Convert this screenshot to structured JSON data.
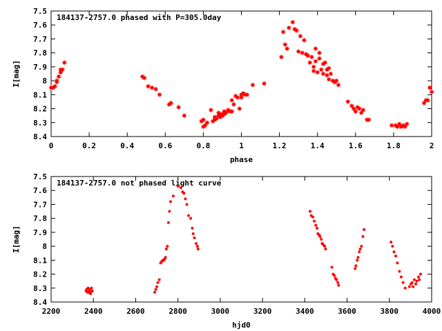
{
  "chart_data": [
    {
      "type": "scatter",
      "title": "184137-2757.0 phased with P=305.0day",
      "xlabel": "phase",
      "ylabel": "I[mag]",
      "xlim": [
        0,
        2
      ],
      "ylim": [
        7.5,
        8.4
      ],
      "y_inverted": true,
      "x_ticks": [
        "0",
        "0.2",
        "0.4",
        "0.6",
        "0.8",
        "1",
        "1.2",
        "1.4",
        "1.6",
        "1.8",
        "2"
      ],
      "y_ticks": [
        "7.5",
        "7.6",
        "7.7",
        "7.8",
        "7.9",
        "8",
        "8.1",
        "8.2",
        "8.3",
        "8.4"
      ],
      "color": "#ff0000",
      "marker": "star",
      "grid": false,
      "series": [
        {
          "x": [
            0.0,
            0.01,
            0.02,
            0.03,
            0.03,
            0.04,
            0.05,
            0.05,
            0.06,
            0.07,
            0.48,
            0.49,
            0.51,
            0.53,
            0.55,
            0.57,
            0.62,
            0.63,
            0.67,
            0.7,
            0.79,
            0.8,
            0.8,
            0.81,
            0.82,
            0.84,
            0.85,
            0.86,
            0.86,
            0.87,
            0.88,
            0.88,
            0.89,
            0.89,
            0.9,
            0.9,
            0.91,
            0.91,
            0.92,
            0.93,
            0.94,
            0.95,
            0.95,
            0.96,
            0.97,
            0.98,
            0.99,
            1.0,
            1.0,
            1.01,
            1.02,
            1.03,
            1.06,
            1.12,
            1.21,
            1.22,
            1.23,
            1.24,
            1.25,
            1.27,
            1.28,
            1.29,
            1.3,
            1.31,
            1.32,
            1.33,
            1.34,
            1.35,
            1.36,
            1.37,
            1.38,
            1.38,
            1.39,
            1.39,
            1.4,
            1.41,
            1.41,
            1.42,
            1.43,
            1.43,
            1.44,
            1.45,
            1.45,
            1.46,
            1.46,
            1.47,
            1.48,
            1.49,
            1.5,
            1.51,
            1.56,
            1.58,
            1.59,
            1.6,
            1.61,
            1.62,
            1.63,
            1.64,
            1.66,
            1.67,
            1.79,
            1.81,
            1.82,
            1.83,
            1.84,
            1.85,
            1.86,
            1.87,
            1.96,
            1.97,
            1.98,
            1.99,
            2.0
          ],
          "y": [
            8.05,
            8.05,
            8.04,
            8.01,
            8.0,
            7.97,
            7.94,
            7.92,
            7.92,
            7.87,
            7.97,
            7.98,
            8.04,
            8.05,
            8.06,
            8.1,
            8.17,
            8.16,
            8.19,
            8.25,
            8.29,
            8.28,
            8.33,
            8.32,
            8.3,
            8.21,
            8.29,
            8.28,
            8.26,
            8.27,
            8.23,
            8.25,
            8.24,
            8.26,
            8.24,
            8.25,
            8.22,
            8.24,
            8.23,
            8.21,
            8.22,
            8.22,
            8.14,
            8.17,
            8.11,
            8.12,
            8.2,
            8.12,
            8.1,
            8.09,
            8.1,
            8.1,
            8.03,
            8.02,
            7.83,
            7.65,
            7.74,
            7.77,
            7.62,
            7.58,
            7.63,
            7.64,
            7.79,
            7.68,
            7.8,
            7.71,
            7.81,
            7.82,
            7.87,
            7.83,
            7.9,
            7.93,
            7.86,
            7.77,
            7.94,
            7.84,
            7.8,
            7.92,
            7.88,
            7.95,
            7.87,
            7.92,
            7.96,
            7.91,
            7.99,
            7.95,
            8.0,
            8.01,
            8.0,
            8.03,
            8.15,
            8.18,
            8.2,
            8.22,
            8.19,
            8.2,
            8.23,
            8.21,
            8.28,
            8.28,
            8.32,
            8.32,
            8.33,
            8.31,
            8.33,
            8.32,
            8.33,
            8.31,
            8.16,
            8.14,
            8.14,
            8.05,
            8.08
          ]
        }
      ]
    },
    {
      "type": "scatter",
      "title": "184137-2757.0 not phased light curve",
      "xlabel": "hjd0",
      "ylabel": "I[mag]",
      "xlim": [
        2200,
        4000
      ],
      "ylim": [
        7.5,
        8.4
      ],
      "y_inverted": true,
      "x_ticks": [
        "2200",
        "2400",
        "2600",
        "2800",
        "3000",
        "3200",
        "3400",
        "3600",
        "3800",
        "4000"
      ],
      "y_ticks": [
        "7.5",
        "7.6",
        "7.7",
        "7.8",
        "7.9",
        "8",
        "8.1",
        "8.2",
        "8.3",
        "8.4"
      ],
      "color": "#ff0000",
      "marker": "dot",
      "grid": false,
      "series": [
        {
          "x": [
            2365,
            2368,
            2372,
            2375,
            2378,
            2380,
            2383,
            2386,
            2388,
            2391,
            2395,
            2690,
            2695,
            2700,
            2705,
            2712,
            2718,
            2723,
            2728,
            2733,
            2738,
            2741,
            2745,
            2750,
            2755,
            2760,
            2765,
            2778,
            2800,
            2814,
            2822,
            2828,
            2835,
            2842,
            2850,
            2860,
            2868,
            2872,
            2878,
            2886,
            2892,
            2895,
            3425,
            3430,
            3438,
            3445,
            3452,
            3458,
            3462,
            3468,
            3472,
            3478,
            3482,
            3488,
            3494,
            3498,
            3528,
            3534,
            3540,
            3545,
            3550,
            3556,
            3560,
            3638,
            3642,
            3648,
            3652,
            3658,
            3662,
            3668,
            3675,
            3680,
            3808,
            3815,
            3822,
            3830,
            3838,
            3848,
            3856,
            3865,
            3875,
            3895,
            3902,
            3908,
            3912,
            3918,
            3925,
            3930,
            3938,
            3942,
            3948
          ],
          "y": [
            8.32,
            8.31,
            8.33,
            8.3,
            8.33,
            8.32,
            8.31,
            8.34,
            8.33,
            8.3,
            8.32,
            8.33,
            8.31,
            8.29,
            8.26,
            8.24,
            8.12,
            8.11,
            8.1,
            8.1,
            8.09,
            8.08,
            8.02,
            8.0,
            7.83,
            7.75,
            7.68,
            7.64,
            7.57,
            7.58,
            7.61,
            7.62,
            7.66,
            7.7,
            7.78,
            7.8,
            7.87,
            7.91,
            7.94,
            7.98,
            8.0,
            8.02,
            7.75,
            7.78,
            7.79,
            7.82,
            7.85,
            7.87,
            7.91,
            7.92,
            7.93,
            7.95,
            7.98,
            7.99,
            8.0,
            8.02,
            8.15,
            8.2,
            8.21,
            8.23,
            8.24,
            8.26,
            8.28,
            8.16,
            8.14,
            8.1,
            8.08,
            8.04,
            8.02,
            8.0,
            7.93,
            7.88,
            7.97,
            8.0,
            8.04,
            8.07,
            8.12,
            8.18,
            8.22,
            8.26,
            8.3,
            8.29,
            8.27,
            8.26,
            8.29,
            8.24,
            8.27,
            8.25,
            8.22,
            8.24,
            8.2
          ]
        }
      ]
    }
  ]
}
